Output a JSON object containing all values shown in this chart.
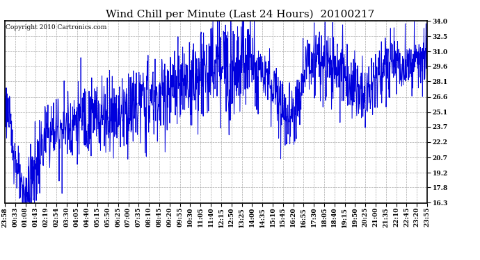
{
  "title": "Wind Chill per Minute (Last 24 Hours)  20100217",
  "copyright_text": "Copyright 2010 Cartronics.com",
  "line_color": "#0000dd",
  "background_color": "#ffffff",
  "grid_color": "#aaaaaa",
  "ylim": [
    16.3,
    34.0
  ],
  "yticks": [
    16.3,
    17.8,
    19.2,
    20.7,
    22.2,
    23.7,
    25.1,
    26.6,
    28.1,
    29.6,
    31.0,
    32.5,
    34.0
  ],
  "xtick_labels": [
    "23:58",
    "00:33",
    "01:08",
    "01:43",
    "02:19",
    "02:54",
    "03:30",
    "04:05",
    "04:40",
    "05:15",
    "05:50",
    "06:25",
    "07:00",
    "07:35",
    "08:10",
    "08:45",
    "09:20",
    "09:55",
    "10:30",
    "11:05",
    "11:40",
    "12:15",
    "12:50",
    "13:25",
    "14:00",
    "14:35",
    "15:10",
    "15:45",
    "16:20",
    "16:55",
    "17:30",
    "18:05",
    "18:40",
    "19:15",
    "19:50",
    "20:25",
    "21:00",
    "21:35",
    "22:10",
    "22:45",
    "23:20",
    "23:55"
  ],
  "num_points": 1440,
  "title_fontsize": 11,
  "copyright_fontsize": 6.5,
  "tick_fontsize": 6.5,
  "line_width": 0.7
}
